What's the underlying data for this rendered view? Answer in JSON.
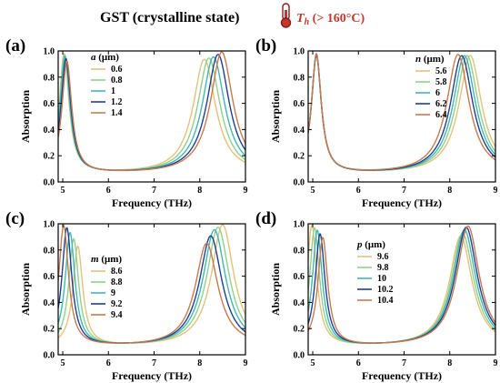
{
  "header": {
    "title": "GST (crystalline state)",
    "temp_symbol": "T",
    "temp_sub": "h",
    "temp_value": " (> 160°C)",
    "title_color": "#000000",
    "temp_color": "#c0392b"
  },
  "chart_data": [
    {
      "id": "a",
      "letter": "(a)",
      "type": "line",
      "xlabel": "Frequency (THz)",
      "ylabel": "Absorption",
      "xlim": [
        4.9,
        9.0
      ],
      "ylim": [
        0.0,
        1.0
      ],
      "xticks": [
        5,
        6,
        7,
        8,
        9
      ],
      "yticks": [
        0.0,
        0.2,
        0.4,
        0.6,
        0.8,
        1.0
      ],
      "legend_symbol": "a",
      "legend_unit": " (μm)",
      "legend_position": "upper-left",
      "series": [
        {
          "name": "0.6",
          "color": "#e3c27a",
          "p1": 5.03,
          "a1": 0.97,
          "p2": 8.1,
          "a2": 0.93
        },
        {
          "name": "0.8",
          "color": "#8fd18d",
          "p1": 5.04,
          "a1": 0.96,
          "p2": 8.2,
          "a2": 0.94
        },
        {
          "name": "1",
          "color": "#3fb8b5",
          "p1": 5.05,
          "a1": 0.95,
          "p2": 8.3,
          "a2": 0.95
        },
        {
          "name": "1.2",
          "color": "#1f3f8f",
          "p1": 5.07,
          "a1": 0.93,
          "p2": 8.4,
          "a2": 0.97
        },
        {
          "name": "1.4",
          "color": "#c87a4f",
          "p1": 5.09,
          "a1": 0.91,
          "p2": 8.48,
          "a2": 0.99
        }
      ]
    },
    {
      "id": "b",
      "letter": "(b)",
      "type": "line",
      "xlabel": "Frequency (THz)",
      "ylabel": "Absorption",
      "xlim": [
        4.9,
        9.0
      ],
      "ylim": [
        0.0,
        1.0
      ],
      "xticks": [
        5,
        6,
        7,
        8,
        9
      ],
      "yticks": [
        0.0,
        0.2,
        0.4,
        0.6,
        0.8,
        1.0
      ],
      "legend_symbol": "n",
      "legend_unit": " (μm)",
      "legend_position": "upper-right",
      "series": [
        {
          "name": "5.6",
          "color": "#e3c27a",
          "p1": 5.08,
          "a1": 0.96,
          "p2": 8.45,
          "a2": 0.96
        },
        {
          "name": "5.8",
          "color": "#8fd18d",
          "p1": 5.08,
          "a1": 0.96,
          "p2": 8.38,
          "a2": 0.96
        },
        {
          "name": "6",
          "color": "#3fb8b5",
          "p1": 5.08,
          "a1": 0.96,
          "p2": 8.32,
          "a2": 0.96
        },
        {
          "name": "6.2",
          "color": "#1f3f8f",
          "p1": 5.08,
          "a1": 0.96,
          "p2": 8.26,
          "a2": 0.96
        },
        {
          "name": "6.4",
          "color": "#c87a4f",
          "p1": 5.08,
          "a1": 0.97,
          "p2": 8.18,
          "a2": 0.97
        }
      ]
    },
    {
      "id": "c",
      "letter": "(c)",
      "type": "line",
      "xlabel": "Frequency (THz)",
      "ylabel": "Absorption",
      "xlim": [
        4.9,
        9.0
      ],
      "ylim": [
        0.0,
        1.0
      ],
      "xticks": [
        5,
        6,
        7,
        8,
        9
      ],
      "yticks": [
        0.0,
        0.2,
        0.4,
        0.6,
        0.8,
        1.0
      ],
      "legend_symbol": "m",
      "legend_unit": " (μm)",
      "legend_position": "center",
      "series": [
        {
          "name": "8.6",
          "color": "#e3c27a",
          "p1": 5.33,
          "a1": 0.81,
          "p2": 8.5,
          "a2": 0.99
        },
        {
          "name": "8.8",
          "color": "#8fd18d",
          "p1": 5.24,
          "a1": 0.87,
          "p2": 8.4,
          "a2": 0.97
        },
        {
          "name": "9",
          "color": "#3fb8b5",
          "p1": 5.16,
          "a1": 0.92,
          "p2": 8.32,
          "a2": 0.95
        },
        {
          "name": "9.2",
          "color": "#1f3f8f",
          "p1": 5.09,
          "a1": 0.96,
          "p2": 8.24,
          "a2": 0.9
        },
        {
          "name": "9.4",
          "color": "#c87a4f",
          "p1": 5.02,
          "a1": 0.98,
          "p2": 8.15,
          "a2": 0.84
        }
      ]
    },
    {
      "id": "d",
      "letter": "(d)",
      "type": "line",
      "xlabel": "Frequency (THz)",
      "ylabel": "Absorption",
      "xlim": [
        4.9,
        9.0
      ],
      "ylim": [
        0.0,
        1.0
      ],
      "xticks": [
        5,
        6,
        7,
        8,
        9
      ],
      "yticks": [
        0.0,
        0.2,
        0.4,
        0.6,
        0.8,
        1.0
      ],
      "legend_symbol": "p",
      "legend_unit": " (μm)",
      "legend_position": "center-left",
      "series": [
        {
          "name": "9.6",
          "color": "#e3c27a",
          "p1": 4.98,
          "a1": 0.98,
          "p2": 8.24,
          "a2": 0.9
        },
        {
          "name": "9.8",
          "color": "#8fd18d",
          "p1": 5.04,
          "a1": 0.96,
          "p2": 8.28,
          "a2": 0.92
        },
        {
          "name": "10",
          "color": "#3fb8b5",
          "p1": 5.1,
          "a1": 0.94,
          "p2": 8.32,
          "a2": 0.95
        },
        {
          "name": "10.2",
          "color": "#1f3f8f",
          "p1": 5.16,
          "a1": 0.91,
          "p2": 8.36,
          "a2": 0.97
        },
        {
          "name": "10.4",
          "color": "#c87a4f",
          "p1": 5.22,
          "a1": 0.88,
          "p2": 8.4,
          "a2": 0.98
        }
      ]
    }
  ]
}
